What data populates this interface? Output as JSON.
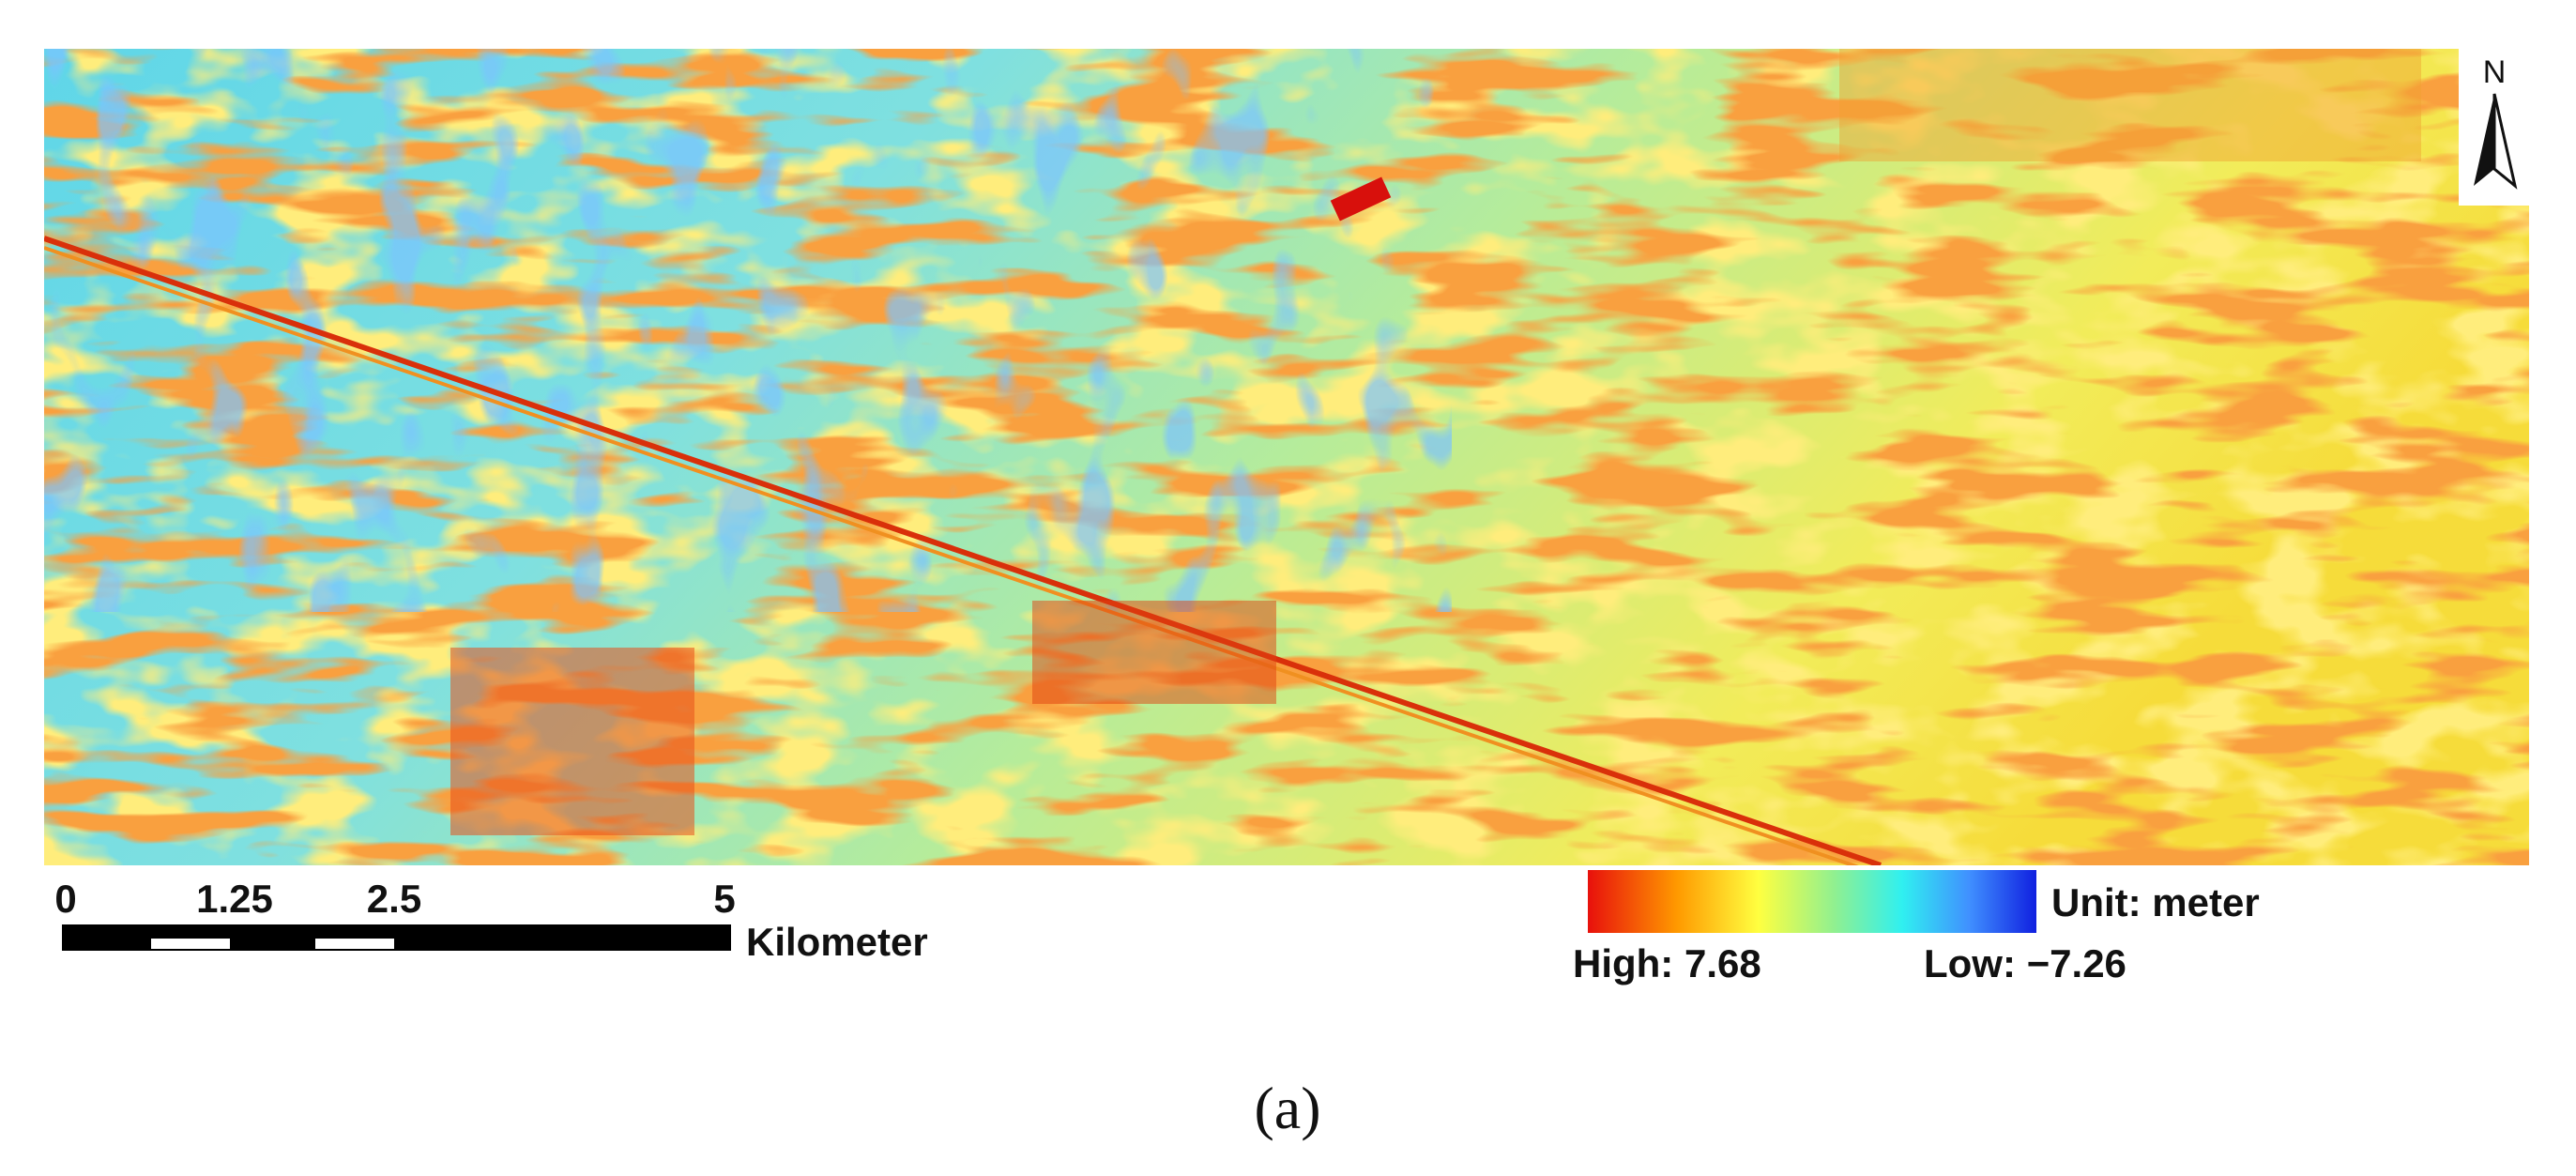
{
  "north_arrow": {
    "label": "N"
  },
  "scale_bar": {
    "ticks": [
      "0",
      "1.25",
      "2.5",
      "5"
    ],
    "unit": "Kilometer"
  },
  "legend": {
    "unit": "Unit: meter",
    "high": "High: 7.68",
    "low": "Low: −7.26"
  },
  "caption": "(a)"
}
